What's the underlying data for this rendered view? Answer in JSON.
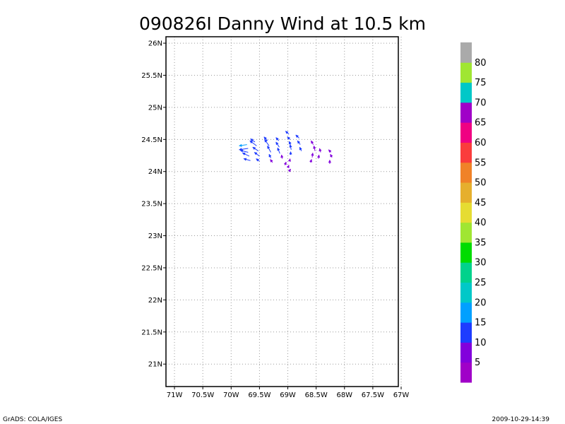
{
  "chart_data": {
    "type": "vector",
    "title": "090826I Danny Wind at 10.5 km",
    "x_ticks": [
      {
        "value": -71.0,
        "label": "71W"
      },
      {
        "value": -70.5,
        "label": "70.5W"
      },
      {
        "value": -70.0,
        "label": "70W"
      },
      {
        "value": -69.5,
        "label": "69.5W"
      },
      {
        "value": -69.0,
        "label": "69W"
      },
      {
        "value": -68.5,
        "label": "68.5W"
      },
      {
        "value": -68.0,
        "label": "68W"
      },
      {
        "value": -67.5,
        "label": "67.5W"
      },
      {
        "value": -67.0,
        "label": "67W"
      }
    ],
    "y_ticks": [
      {
        "value": 21.0,
        "label": "21N"
      },
      {
        "value": 21.5,
        "label": "21.5N"
      },
      {
        "value": 22.0,
        "label": "22N"
      },
      {
        "value": 22.5,
        "label": "22.5N"
      },
      {
        "value": 23.0,
        "label": "23N"
      },
      {
        "value": 23.5,
        "label": "23.5N"
      },
      {
        "value": 24.0,
        "label": "24N"
      },
      {
        "value": 24.5,
        "label": "24.5N"
      },
      {
        "value": 25.0,
        "label": "25N"
      },
      {
        "value": 25.5,
        "label": "25.5N"
      },
      {
        "value": 26.0,
        "label": "26N"
      }
    ],
    "xlim": [
      -71.15,
      -67.05
    ],
    "ylim": [
      20.65,
      26.1
    ],
    "grid": true,
    "colorbar": {
      "colors": [
        "#a000c8",
        "#8200dc",
        "#1e3cff",
        "#00a0ff",
        "#00c8c8",
        "#00d28c",
        "#00dc00",
        "#a0e632",
        "#e6dc32",
        "#e6af2d",
        "#f08228",
        "#fa3c3c",
        "#f00082",
        "#a000c8",
        "#00c8c8",
        "#a0e632",
        "#aaaaaa"
      ],
      "labels": [
        "5",
        "10",
        "15",
        "20",
        "25",
        "30",
        "35",
        "40",
        "45",
        "50",
        "55",
        "60",
        "65",
        "70",
        "75",
        "80"
      ]
    },
    "vectors": [
      {
        "lon": -69.72,
        "lat": 24.42,
        "u": -0.14,
        "v": -0.02,
        "color": "#00a0ff"
      },
      {
        "lon": -69.7,
        "lat": 24.36,
        "u": -0.16,
        "v": -0.02,
        "color": "#1e3cff"
      },
      {
        "lon": -69.7,
        "lat": 24.3,
        "u": -0.14,
        "v": 0.03,
        "color": "#1e3cff"
      },
      {
        "lon": -69.68,
        "lat": 24.24,
        "u": -0.12,
        "v": 0.05,
        "color": "#1e3cff"
      },
      {
        "lon": -69.66,
        "lat": 24.17,
        "u": -0.12,
        "v": 0.03,
        "color": "#1e3cff"
      },
      {
        "lon": -69.58,
        "lat": 24.46,
        "u": -0.08,
        "v": 0.05,
        "color": "#1e3cff"
      },
      {
        "lon": -69.55,
        "lat": 24.4,
        "u": -0.12,
        "v": 0.08,
        "color": "#1e3cff"
      },
      {
        "lon": -69.52,
        "lat": 24.32,
        "u": -0.1,
        "v": 0.06,
        "color": "#1e3cff"
      },
      {
        "lon": -69.5,
        "lat": 24.24,
        "u": -0.09,
        "v": 0.06,
        "color": "#1e3cff"
      },
      {
        "lon": -69.5,
        "lat": 24.16,
        "u": -0.06,
        "v": 0.04,
        "color": "#1e3cff"
      },
      {
        "lon": -69.36,
        "lat": 24.48,
        "u": -0.06,
        "v": 0.06,
        "color": "#1e3cff"
      },
      {
        "lon": -69.33,
        "lat": 24.4,
        "u": -0.08,
        "v": 0.1,
        "color": "#1e3cff"
      },
      {
        "lon": -69.3,
        "lat": 24.3,
        "u": -0.06,
        "v": 0.1,
        "color": "#1e3cff"
      },
      {
        "lon": -69.3,
        "lat": 24.21,
        "u": -0.03,
        "v": 0.06,
        "color": "#1e3cff"
      },
      {
        "lon": -69.27,
        "lat": 24.14,
        "u": -0.04,
        "v": 0.05,
        "color": "#8200dc"
      },
      {
        "lon": -69.16,
        "lat": 24.48,
        "u": -0.05,
        "v": 0.05,
        "color": "#1e3cff"
      },
      {
        "lon": -69.15,
        "lat": 24.38,
        "u": -0.06,
        "v": 0.08,
        "color": "#1e3cff"
      },
      {
        "lon": -69.14,
        "lat": 24.28,
        "u": -0.04,
        "v": 0.09,
        "color": "#1e3cff"
      },
      {
        "lon": -69.1,
        "lat": 24.2,
        "u": -0.01,
        "v": 0.06,
        "color": "#8200dc"
      },
      {
        "lon": -69.05,
        "lat": 24.1,
        "u": 0.02,
        "v": 0.05,
        "color": "#8200dc"
      },
      {
        "lon": -68.98,
        "lat": 24.58,
        "u": -0.06,
        "v": 0.05,
        "color": "#1e3cff"
      },
      {
        "lon": -68.96,
        "lat": 24.5,
        "u": -0.05,
        "v": 0.04,
        "color": "#1e3cff"
      },
      {
        "lon": -68.95,
        "lat": 24.42,
        "u": -0.03,
        "v": 0.05,
        "color": "#1e3cff"
      },
      {
        "lon": -68.94,
        "lat": 24.34,
        "u": -0.02,
        "v": 0.08,
        "color": "#1e3cff"
      },
      {
        "lon": -68.95,
        "lat": 24.26,
        "u": 0.0,
        "v": 0.05,
        "color": "#1e3cff"
      },
      {
        "lon": -68.97,
        "lat": 24.16,
        "u": 0.01,
        "v": 0.04,
        "color": "#8200dc"
      },
      {
        "lon": -69.0,
        "lat": 24.06,
        "u": 0.02,
        "v": 0.04,
        "color": "#8200dc"
      },
      {
        "lon": -68.98,
        "lat": 24.0,
        "u": 0.03,
        "v": 0.04,
        "color": "#8200dc"
      },
      {
        "lon": -68.8,
        "lat": 24.52,
        "u": -0.06,
        "v": 0.05,
        "color": "#1e3cff"
      },
      {
        "lon": -68.78,
        "lat": 24.42,
        "u": -0.05,
        "v": 0.06,
        "color": "#1e3cff"
      },
      {
        "lon": -68.76,
        "lat": 24.32,
        "u": -0.03,
        "v": 0.06,
        "color": "#1e3cff"
      },
      {
        "lon": -68.55,
        "lat": 24.42,
        "u": -0.04,
        "v": 0.06,
        "color": "#8200dc"
      },
      {
        "lon": -68.52,
        "lat": 24.32,
        "u": -0.02,
        "v": 0.08,
        "color": "#8200dc"
      },
      {
        "lon": -68.57,
        "lat": 24.22,
        "u": 0.01,
        "v": 0.07,
        "color": "#8200dc"
      },
      {
        "lon": -68.6,
        "lat": 24.14,
        "u": 0.02,
        "v": 0.05,
        "color": "#8200dc"
      },
      {
        "lon": -68.46,
        "lat": 24.2,
        "u": 0.01,
        "v": 0.06,
        "color": "#8200dc"
      },
      {
        "lon": -68.42,
        "lat": 24.3,
        "u": -0.02,
        "v": 0.06,
        "color": "#8200dc"
      },
      {
        "lon": -68.24,
        "lat": 24.3,
        "u": -0.04,
        "v": 0.04,
        "color": "#8200dc"
      },
      {
        "lon": -68.22,
        "lat": 24.22,
        "u": -0.03,
        "v": 0.05,
        "color": "#8200dc"
      },
      {
        "lon": -68.26,
        "lat": 24.12,
        "u": 0.0,
        "v": 0.06,
        "color": "#8200dc"
      }
    ]
  },
  "footer": {
    "left": "GrADS: COLA/IGES",
    "right": "2009-10-29-14:39"
  }
}
